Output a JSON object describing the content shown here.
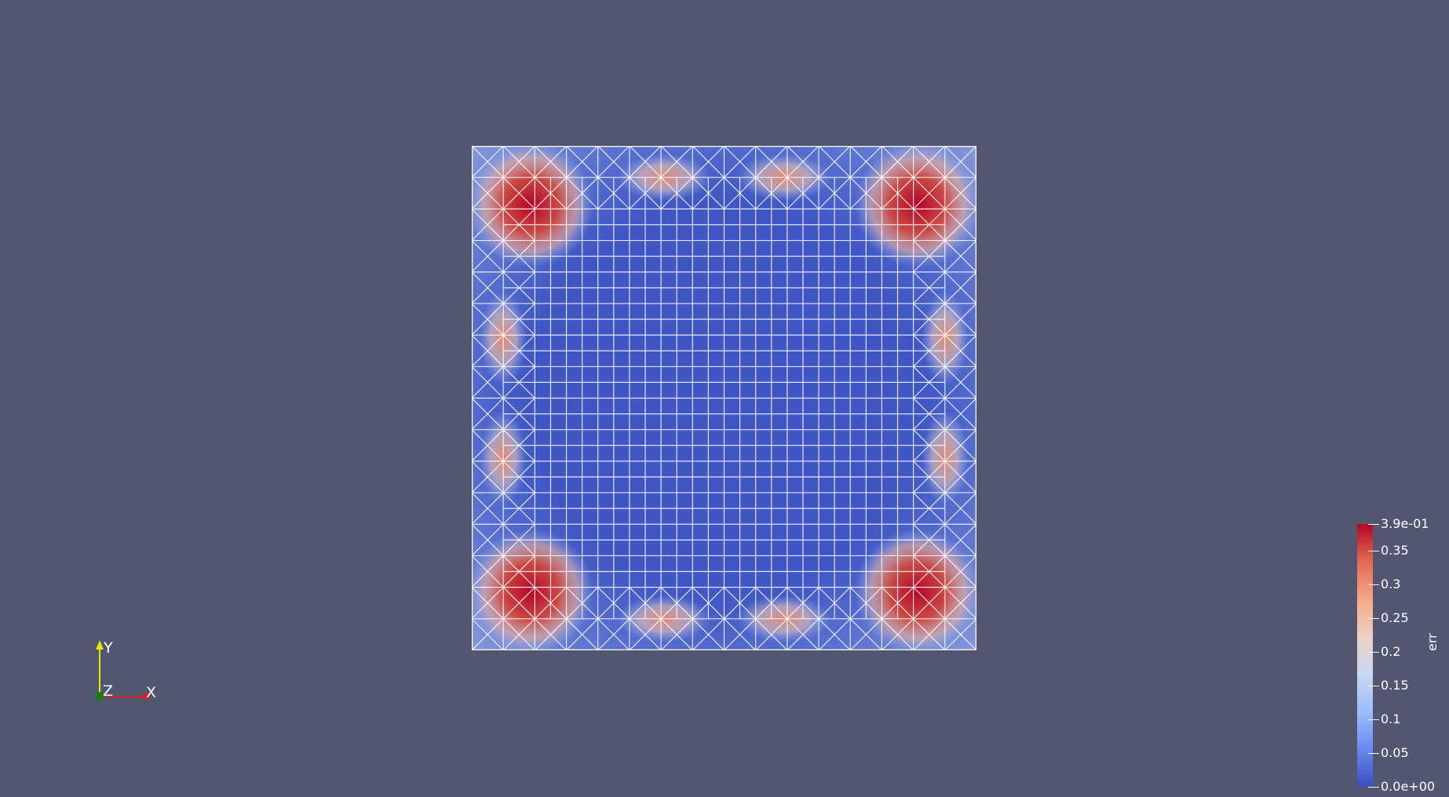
{
  "view": {
    "background": "#525670",
    "mesh": {
      "divisions": 16,
      "edge_color": "#ffffff"
    },
    "field": {
      "name": "err"
    }
  },
  "colorbar": {
    "title": "err",
    "range": [
      0,
      0.39
    ],
    "colors": [
      "#3b4cc0",
      "#6788ee",
      "#9abbff",
      "#c9d7f0",
      "#edd1c2",
      "#f7a889",
      "#e26952",
      "#b40426"
    ],
    "ticks": [
      {
        "value": 0.39,
        "label": "3.9e-01"
      },
      {
        "value": 0.35,
        "label": "0.35"
      },
      {
        "value": 0.3,
        "label": "0.3"
      },
      {
        "value": 0.25,
        "label": "0.25"
      },
      {
        "value": 0.2,
        "label": "0.2"
      },
      {
        "value": 0.15,
        "label": "0.15"
      },
      {
        "value": 0.1,
        "label": "0.1"
      },
      {
        "value": 0.05,
        "label": "0.05"
      },
      {
        "value": 0,
        "label": "0.0e+00"
      }
    ]
  },
  "axes": {
    "x_label": "X",
    "y_label": "Y",
    "z_label": "Z",
    "x_color": "#d62020",
    "y_color": "#e6e600",
    "z_color": "#1a7a1a"
  }
}
